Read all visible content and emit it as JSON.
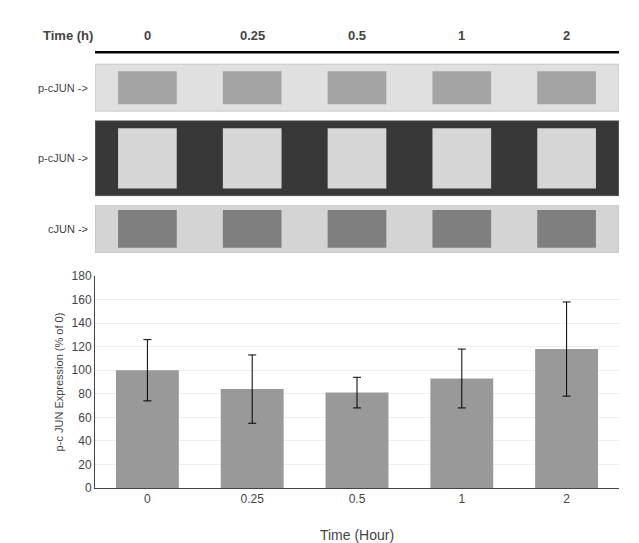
{
  "chart_data": {
    "type": "bar",
    "categories": [
      "0",
      "0.25",
      "0.5",
      "1",
      "2"
    ],
    "values": [
      100,
      84,
      81,
      93,
      118
    ],
    "error_bars": [
      26,
      29,
      13,
      25,
      40
    ],
    "color": "#999999",
    "xlabel": "Time (Hour)",
    "ylabel": "p-c JUN Expression (% of 0)",
    "ylim": [
      0,
      180
    ],
    "yticks": [
      0,
      20,
      40,
      60,
      80,
      100,
      120,
      140,
      160,
      180
    ],
    "grid": true,
    "header_label": "Time (h)",
    "header_labels": [
      "0",
      "0.25",
      "0.5",
      "1",
      "2"
    ],
    "blot_labels": [
      "p-cJUN ->",
      "p-cJUN ->",
      "cJUN ->"
    ]
  }
}
